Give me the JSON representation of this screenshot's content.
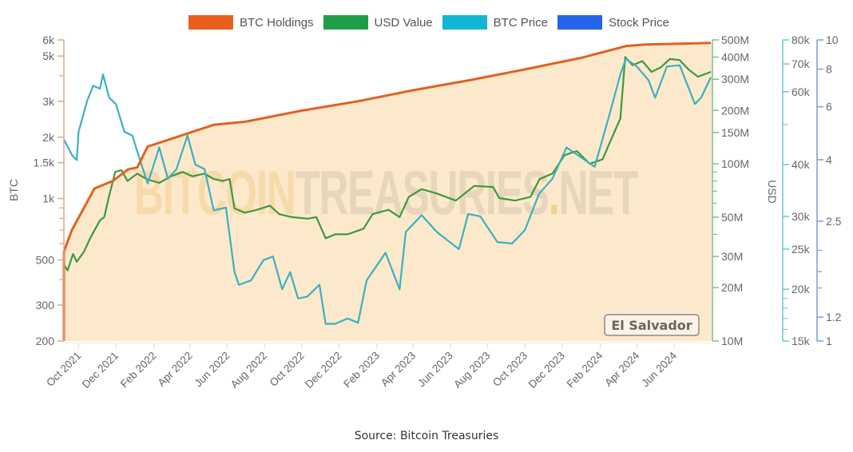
{
  "legend": [
    {
      "label": "BTC Holdings",
      "color": "#e8601c"
    },
    {
      "label": "USD Value",
      "color": "#1f9e47"
    },
    {
      "label": "BTC Price",
      "color": "#12b5d4"
    },
    {
      "label": "Stock Price",
      "color": "#2563eb"
    }
  ],
  "watermark": {
    "part1": "BITCOIN",
    "part2": "TREASURIES",
    "dot": ".",
    "part3": "NET"
  },
  "badge": "El Salvador",
  "source": "Source: Bitcoin Treasuries",
  "axes": {
    "left_title": "BTC",
    "right_title": "USD"
  },
  "chart_data": {
    "type": "line",
    "title": "El Salvador",
    "legend_position": "top",
    "grid": false,
    "x_ticks": [
      "Oct 2021",
      "Dec 2021",
      "Feb 2022",
      "Apr 2022",
      "Jun 2022",
      "Aug 2022",
      "Oct 2022",
      "Dec 2022",
      "Feb 2023",
      "Apr 2023",
      "Jun 2023",
      "Aug 2023",
      "Oct 2023",
      "Dec 2023",
      "Feb 2024",
      "Apr 2024",
      "Jun 2024"
    ],
    "axes": [
      {
        "name": "BTC",
        "scale": "log",
        "range": [
          200,
          6000
        ],
        "ticks": [
          "200",
          "300",
          "500",
          "1k",
          "1.5k",
          "2k",
          "3k",
          "5k",
          "6k"
        ],
        "color": "#e8601c"
      },
      {
        "name": "USD Value",
        "scale": "log",
        "range": [
          10000000,
          500000000
        ],
        "ticks": [
          "10M",
          "20M",
          "30M",
          "50M",
          "100M",
          "150M",
          "200M",
          "300M",
          "400M",
          "500M"
        ],
        "color": "#1f9e47"
      },
      {
        "name": "BTC Price",
        "scale": "log",
        "range": [
          15000,
          80000
        ],
        "ticks": [
          "15k",
          "20k",
          "25k",
          "30k",
          "40k",
          "60k",
          "70k",
          "80k"
        ],
        "color": "#12b5d4"
      },
      {
        "name": "Stock Price",
        "scale": "log",
        "range": [
          1,
          10
        ],
        "ticks": [
          "1",
          "1.2",
          "2.5",
          "4",
          "6",
          "8",
          "10"
        ],
        "color": "#2563eb"
      }
    ],
    "series": [
      {
        "name": "BTC Holdings",
        "axis": "BTC",
        "area": true,
        "points": [
          [
            "2021-09-07",
            200
          ],
          [
            "2021-09-07",
            550
          ],
          [
            "2021-09-20",
            700
          ],
          [
            "2021-10-27",
            1120
          ],
          [
            "2021-11-26",
            1220
          ],
          [
            "2021-12-21",
            1390
          ],
          [
            "2022-01-05",
            1420
          ],
          [
            "2022-01-22",
            1800
          ],
          [
            "2022-02-15",
            1900
          ],
          [
            "2022-03-31",
            2100
          ],
          [
            "2022-05-10",
            2300
          ],
          [
            "2022-07-01",
            2381
          ],
          [
            "2022-10-01",
            2700
          ],
          [
            "2023-01-01",
            3000
          ],
          [
            "2023-04-01",
            3400
          ],
          [
            "2023-07-01",
            3800
          ],
          [
            "2023-10-01",
            4300
          ],
          [
            "2024-01-01",
            4900
          ],
          [
            "2024-03-15",
            5600
          ],
          [
            "2024-04-15",
            5700
          ],
          [
            "2024-07-31",
            5800
          ]
        ]
      },
      {
        "name": "USD Value",
        "axis": "USD Value",
        "points": [
          [
            "2021-09-07",
            27000000
          ],
          [
            "2021-09-13",
            25000000
          ],
          [
            "2021-09-22",
            31000000
          ],
          [
            "2021-09-28",
            28000000
          ],
          [
            "2021-10-10",
            32000000
          ],
          [
            "2021-10-20",
            38000000
          ],
          [
            "2021-10-30",
            44000000
          ],
          [
            "2021-11-05",
            48000000
          ],
          [
            "2021-11-12",
            50000000
          ],
          [
            "2021-11-20",
            66000000
          ],
          [
            "2021-11-30",
            90000000
          ],
          [
            "2021-12-10",
            92000000
          ],
          [
            "2021-12-20",
            80000000
          ],
          [
            "2022-01-05",
            88000000
          ],
          [
            "2022-01-20",
            82000000
          ],
          [
            "2022-02-10",
            78000000
          ],
          [
            "2022-03-01",
            85000000
          ],
          [
            "2022-03-20",
            90000000
          ],
          [
            "2022-04-05",
            85000000
          ],
          [
            "2022-04-25",
            88000000
          ],
          [
            "2022-05-10",
            82000000
          ],
          [
            "2022-05-25",
            80000000
          ],
          [
            "2022-06-05",
            82000000
          ],
          [
            "2022-06-13",
            56000000
          ],
          [
            "2022-06-30",
            53000000
          ],
          [
            "2022-07-20",
            55000000
          ],
          [
            "2022-08-10",
            58000000
          ],
          [
            "2022-08-25",
            52000000
          ],
          [
            "2022-09-15",
            50000000
          ],
          [
            "2022-10-10",
            49000000
          ],
          [
            "2022-10-25",
            50000000
          ],
          [
            "2022-11-09",
            38000000
          ],
          [
            "2022-11-25",
            40000000
          ],
          [
            "2022-12-15",
            40000000
          ],
          [
            "2023-01-10",
            43000000
          ],
          [
            "2023-01-25",
            52000000
          ],
          [
            "2023-02-20",
            55000000
          ],
          [
            "2023-03-10",
            50000000
          ],
          [
            "2023-03-25",
            65000000
          ],
          [
            "2023-04-15",
            72000000
          ],
          [
            "2023-05-10",
            68000000
          ],
          [
            "2023-06-10",
            62000000
          ],
          [
            "2023-07-10",
            75000000
          ],
          [
            "2023-08-10",
            74000000
          ],
          [
            "2023-08-20",
            64000000
          ],
          [
            "2023-09-15",
            62000000
          ],
          [
            "2023-10-10",
            65000000
          ],
          [
            "2023-10-25",
            82000000
          ],
          [
            "2023-11-15",
            88000000
          ],
          [
            "2023-12-05",
            112000000
          ],
          [
            "2023-12-25",
            118000000
          ],
          [
            "2024-01-15",
            100000000
          ],
          [
            "2024-02-05",
            106000000
          ],
          [
            "2024-02-20",
            140000000
          ],
          [
            "2024-03-05",
            180000000
          ],
          [
            "2024-03-13",
            400000000
          ],
          [
            "2024-03-25",
            360000000
          ],
          [
            "2024-04-10",
            380000000
          ],
          [
            "2024-04-25",
            330000000
          ],
          [
            "2024-05-10",
            350000000
          ],
          [
            "2024-05-25",
            390000000
          ],
          [
            "2024-06-10",
            385000000
          ],
          [
            "2024-06-25",
            340000000
          ],
          [
            "2024-07-10",
            310000000
          ],
          [
            "2024-07-31",
            330000000
          ]
        ]
      },
      {
        "name": "BTC Price",
        "axis": "BTC Price",
        "points": [
          [
            "2021-09-07",
            46000
          ],
          [
            "2021-09-21",
            42000
          ],
          [
            "2021-09-28",
            41000
          ],
          [
            "2021-10-01",
            48000
          ],
          [
            "2021-10-15",
            57000
          ],
          [
            "2021-10-25",
            62000
          ],
          [
            "2021-11-05",
            61000
          ],
          [
            "2021-11-10",
            66000
          ],
          [
            "2021-11-20",
            58000
          ],
          [
            "2021-12-01",
            56000
          ],
          [
            "2021-12-15",
            48000
          ],
          [
            "2021-12-28",
            47000
          ],
          [
            "2022-01-05",
            43000
          ],
          [
            "2022-01-22",
            36000
          ],
          [
            "2022-02-10",
            44000
          ],
          [
            "2022-02-24",
            37000
          ],
          [
            "2022-03-10",
            39000
          ],
          [
            "2022-03-28",
            47000
          ],
          [
            "2022-04-10",
            40000
          ],
          [
            "2022-04-25",
            39000
          ],
          [
            "2022-05-10",
            31000
          ],
          [
            "2022-05-30",
            31500
          ],
          [
            "2022-06-13",
            22000
          ],
          [
            "2022-06-20",
            20500
          ],
          [
            "2022-07-10",
            21000
          ],
          [
            "2022-07-30",
            23500
          ],
          [
            "2022-08-15",
            24000
          ],
          [
            "2022-08-30",
            20000
          ],
          [
            "2022-09-12",
            22000
          ],
          [
            "2022-09-25",
            19000
          ],
          [
            "2022-10-10",
            19200
          ],
          [
            "2022-10-30",
            20500
          ],
          [
            "2022-11-09",
            16500
          ],
          [
            "2022-11-25",
            16500
          ],
          [
            "2022-12-15",
            17000
          ],
          [
            "2023-01-01",
            16600
          ],
          [
            "2023-01-15",
            21000
          ],
          [
            "2023-02-15",
            24500
          ],
          [
            "2023-03-10",
            20000
          ],
          [
            "2023-03-20",
            27500
          ],
          [
            "2023-04-15",
            30200
          ],
          [
            "2023-05-10",
            27500
          ],
          [
            "2023-06-15",
            25000
          ],
          [
            "2023-06-30",
            30400
          ],
          [
            "2023-07-20",
            30000
          ],
          [
            "2023-08-17",
            26000
          ],
          [
            "2023-09-10",
            25800
          ],
          [
            "2023-10-01",
            27800
          ],
          [
            "2023-10-24",
            34000
          ],
          [
            "2023-11-15",
            37000
          ],
          [
            "2023-12-08",
            44000
          ],
          [
            "2023-12-28",
            42000
          ],
          [
            "2024-01-23",
            39500
          ],
          [
            "2024-02-15",
            52000
          ],
          [
            "2024-03-05",
            66000
          ],
          [
            "2024-03-14",
            72000
          ],
          [
            "2024-04-01",
            69000
          ],
          [
            "2024-04-20",
            64000
          ],
          [
            "2024-05-01",
            58000
          ],
          [
            "2024-05-20",
            69000
          ],
          [
            "2024-06-10",
            69500
          ],
          [
            "2024-07-05",
            56000
          ],
          [
            "2024-07-15",
            58000
          ],
          [
            "2024-07-31",
            65000
          ]
        ]
      },
      {
        "name": "Stock Price",
        "axis": "Stock Price",
        "points": []
      }
    ]
  }
}
